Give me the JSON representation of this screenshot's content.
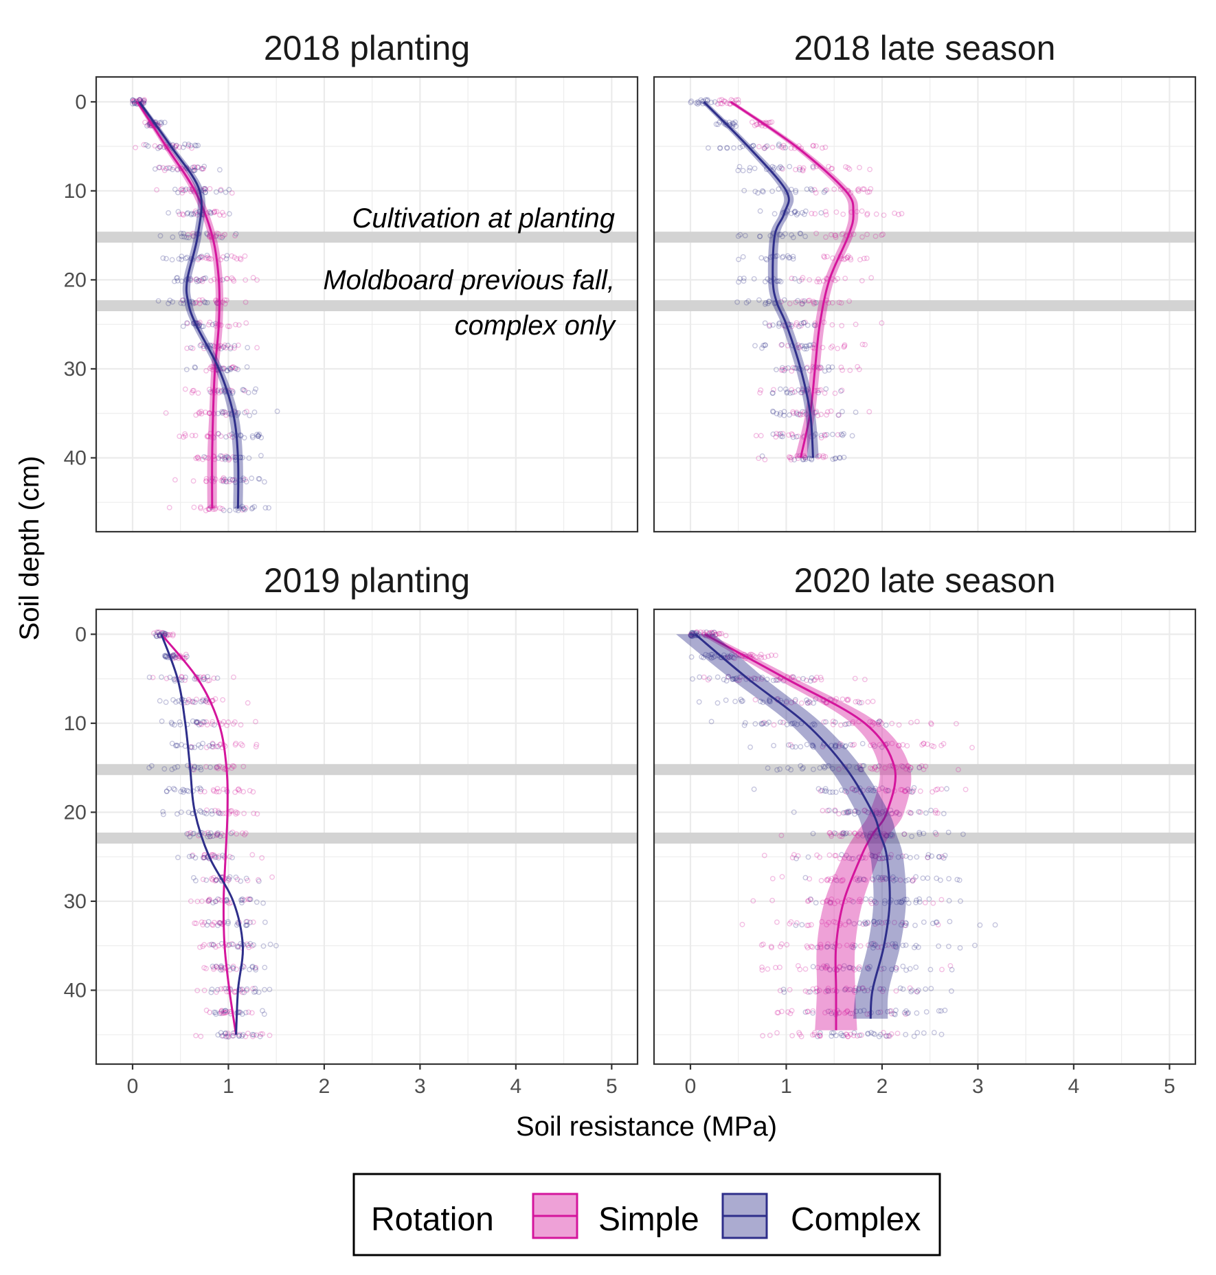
{
  "chart_data": {
    "type": "line",
    "description_layout": "2x2 facets",
    "xlabel": "Soil resistance (MPa)",
    "ylabel": "Soil depth (cm)",
    "xlim": [
      -0.38,
      5.27
    ],
    "xticks": [
      0,
      1,
      2,
      3,
      4,
      5
    ],
    "grid": true,
    "legend": {
      "title": "Rotation",
      "position": "bottom",
      "entries": [
        {
          "label": "Simple",
          "color": "#d4159c"
        },
        {
          "label": "Complex",
          "color": "#2e2e8a"
        }
      ]
    },
    "reference_depths": [
      15.2,
      22.9
    ],
    "annotations": [
      {
        "text": "Cultivation at planting",
        "depth": 13.1
      },
      {
        "text": "Moldboard previous fall,",
        "depth": 20.0
      },
      {
        "text": "complex only",
        "depth": 25.0
      }
    ],
    "panels": [
      {
        "title": "2018 planting",
        "ylim": [
          -2.8,
          48.3
        ],
        "yticks": [
          0,
          10,
          20,
          30,
          40
        ],
        "depth_levels": [
          0,
          2.5,
          5,
          7.5,
          10,
          12.5,
          15,
          17.5,
          20,
          22.5,
          25,
          27.5,
          30,
          32.5,
          35,
          37.5,
          40,
          42.5,
          45.7
        ],
        "series": [
          {
            "name": "Simple",
            "depth": [
              0,
              5,
              10,
              15,
              20,
              25,
              30,
              35,
              40,
              45.7
            ],
            "resistance": [
              0.05,
              0.35,
              0.65,
              0.83,
              0.9,
              0.9,
              0.86,
              0.84,
              0.83,
              0.83
            ],
            "band": [
              0.02,
              0.03,
              0.04,
              0.04,
              0.04,
              0.04,
              0.04,
              0.04,
              0.05,
              0.05
            ]
          },
          {
            "name": "Complex",
            "depth": [
              0,
              5,
              10,
              15,
              20,
              22.5,
              25,
              30,
              35,
              40,
              45.7
            ],
            "resistance": [
              0.07,
              0.4,
              0.7,
              0.68,
              0.57,
              0.58,
              0.66,
              0.9,
              1.05,
              1.1,
              1.1
            ],
            "band": [
              0.02,
              0.03,
              0.04,
              0.04,
              0.04,
              0.04,
              0.04,
              0.04,
              0.05,
              0.05,
              0.05
            ]
          }
        ]
      },
      {
        "title": "2018 late season",
        "ylim": [
          -2.8,
          48.3
        ],
        "yticks": [
          0,
          10,
          20,
          30,
          40
        ],
        "depth_levels": [
          0,
          2.5,
          5,
          7.5,
          10,
          12.5,
          15,
          17.5,
          20,
          22.5,
          25,
          27.5,
          30,
          32.5,
          35,
          37.5,
          40
        ],
        "series": [
          {
            "name": "Simple",
            "depth": [
              0,
              5,
              10,
              12.5,
              15,
              20,
              25,
              30,
              35,
              40
            ],
            "resistance": [
              0.42,
              1.1,
              1.62,
              1.7,
              1.65,
              1.45,
              1.35,
              1.3,
              1.25,
              1.15
            ],
            "band": [
              0.03,
              0.04,
              0.05,
              0.05,
              0.05,
              0.05,
              0.05,
              0.05,
              0.05,
              0.06
            ]
          },
          {
            "name": "Complex",
            "depth": [
              0,
              5,
              10,
              12.5,
              15,
              20,
              22.5,
              25,
              30,
              35,
              40
            ],
            "resistance": [
              0.14,
              0.6,
              1.0,
              0.98,
              0.88,
              0.86,
              0.9,
              1.0,
              1.15,
              1.25,
              1.28
            ],
            "band": [
              0.03,
              0.04,
              0.05,
              0.05,
              0.05,
              0.05,
              0.05,
              0.05,
              0.05,
              0.05,
              0.06
            ]
          }
        ]
      },
      {
        "title": "2019 planting",
        "ylim": [
          -2.8,
          48.3
        ],
        "yticks": [
          0,
          10,
          20,
          30,
          40
        ],
        "depth_levels": [
          0,
          2.5,
          5,
          7.5,
          10,
          12.5,
          15,
          17.5,
          20,
          22.5,
          25,
          27.5,
          30,
          32.5,
          35,
          37.5,
          40,
          42.5,
          45
        ],
        "series": [
          {
            "name": "Simple",
            "depth": [
              0,
              5,
              10,
              15,
              20,
              25,
              30,
              35,
              40,
              45
            ],
            "resistance": [
              0.3,
              0.68,
              0.9,
              0.98,
              0.99,
              0.97,
              0.95,
              0.96,
              1.01,
              1.08
            ],
            "band": [
              0.01,
              0.01,
              0.01,
              0.01,
              0.01,
              0.01,
              0.01,
              0.01,
              0.01,
              0.01
            ]
          },
          {
            "name": "Complex",
            "depth": [
              0,
              5,
              10,
              15,
              20,
              25,
              30,
              35,
              40,
              45
            ],
            "resistance": [
              0.3,
              0.47,
              0.55,
              0.6,
              0.65,
              0.8,
              1.05,
              1.15,
              1.1,
              1.08
            ],
            "band": [
              0.01,
              0.01,
              0.01,
              0.01,
              0.01,
              0.01,
              0.01,
              0.01,
              0.01,
              0.01
            ]
          }
        ]
      },
      {
        "title": "2020 late season",
        "ylim": [
          -2.8,
          48.3
        ],
        "yticks": [
          0,
          10,
          20,
          30,
          40
        ],
        "depth_levels": [
          0,
          2.5,
          5,
          7.5,
          10,
          12.5,
          15,
          17.5,
          20,
          22.5,
          25,
          27.5,
          30,
          32.5,
          35,
          37.5,
          40,
          42.5,
          45
        ],
        "series": [
          {
            "name": "Simple",
            "depth": [
              0,
              5,
              10,
              15,
              20,
              22.5,
              25,
              30,
              35,
              40,
              44.5
            ],
            "resistance": [
              0.15,
              1.0,
              1.82,
              2.13,
              2.05,
              1.9,
              1.78,
              1.6,
              1.52,
              1.52,
              1.52
            ],
            "band": [
              0.05,
              0.1,
              0.14,
              0.16,
              0.18,
              0.18,
              0.19,
              0.2,
              0.2,
              0.2,
              0.22
            ]
          },
          {
            "name": "Complex",
            "depth": [
              0,
              5,
              10,
              15,
              20,
              22.5,
              25,
              30,
              35,
              40,
              43.2
            ],
            "resistance": [
              0.05,
              0.6,
              1.2,
              1.62,
              1.9,
              1.98,
              2.05,
              2.08,
              2.02,
              1.9,
              1.88
            ],
            "band": [
              0.2,
              0.18,
              0.17,
              0.17,
              0.17,
              0.17,
              0.17,
              0.17,
              0.17,
              0.17,
              0.18
            ]
          }
        ]
      }
    ]
  }
}
